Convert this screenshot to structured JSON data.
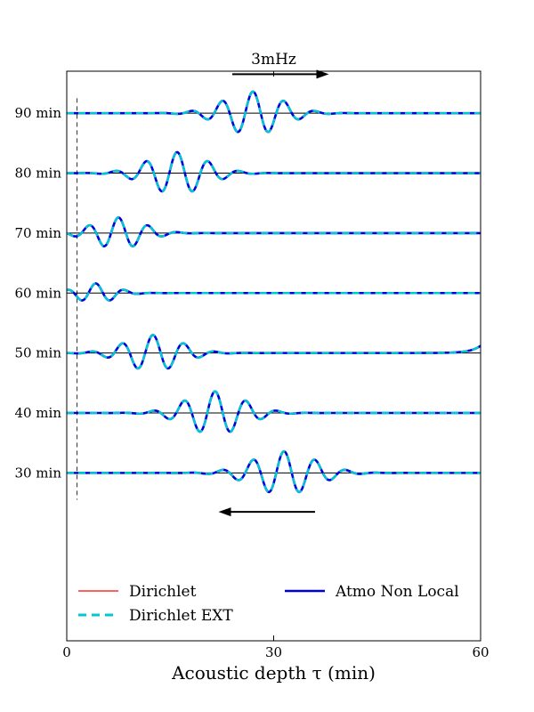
{
  "chart_data": {
    "type": "line",
    "title": "3mHz",
    "xlabel": "Acoustic depth τ (min)",
    "ylabel": "",
    "xlim": [
      0,
      60
    ],
    "x_ticks": [
      "0",
      "30",
      "60"
    ],
    "x_tick_values": [
      0,
      30,
      60
    ],
    "ylim": [
      -88,
      7
    ],
    "y_ticks": [
      "90 min",
      "80 min",
      "70 min",
      "60 min",
      "50 min",
      "40 min",
      "30 min"
    ],
    "y_tick_values": [
      0,
      -10,
      -20,
      -30,
      -40,
      -50,
      -60
    ],
    "grid": false,
    "legend": {
      "placement": "bottom",
      "entries": [
        {
          "label": "Dirichlet",
          "color": "#ff0000",
          "style": "solid-thin"
        },
        {
          "label": "Atmo Non Local",
          "color": "#0000dd",
          "style": "solid-thick"
        },
        {
          "label": "Dirichlet EXT",
          "color": "#00c8d2",
          "style": "dashed"
        }
      ]
    },
    "reference_line_tau": 1.5,
    "arrows": [
      {
        "direction": "right",
        "from": 24,
        "to": 38,
        "y": 6.5
      },
      {
        "direction": "left",
        "from": 36,
        "to": 22,
        "y": -66.5
      }
    ],
    "traces": [
      {
        "time": "90 min",
        "offset": 0,
        "center": 27,
        "amplitude": 3.6,
        "width": 4.2,
        "period": 4.5,
        "edge": 0
      },
      {
        "time": "80 min",
        "offset": -10,
        "center": 16,
        "amplitude": 3.5,
        "width": 4.2,
        "period": 4.5,
        "edge": 0
      },
      {
        "time": "70 min",
        "offset": -20,
        "center": 7.5,
        "amplitude": 2.6,
        "width": 3.6,
        "period": 4.3,
        "edge": 0
      },
      {
        "time": "60 min",
        "offset": -30,
        "center": 4.2,
        "amplitude": 1.6,
        "width": 2.8,
        "period": 4.2,
        "edge": 0
      },
      {
        "time": "50 min",
        "offset": -40,
        "center": 12.5,
        "amplitude": 3.0,
        "width": 4.0,
        "period": 4.5,
        "edge": 1.2
      },
      {
        "time": "40 min",
        "offset": -50,
        "center": 21.5,
        "amplitude": 3.6,
        "width": 4.2,
        "period": 4.5,
        "edge": 0
      },
      {
        "time": "30 min",
        "offset": -60,
        "center": 31.5,
        "amplitude": 3.6,
        "width": 4.5,
        "period": 4.5,
        "edge": 0
      }
    ],
    "colors": {
      "atmo": "#0000dd",
      "ext": "#00c8d2",
      "dirichlet": "#ff0000",
      "baseline": "#000000"
    }
  }
}
